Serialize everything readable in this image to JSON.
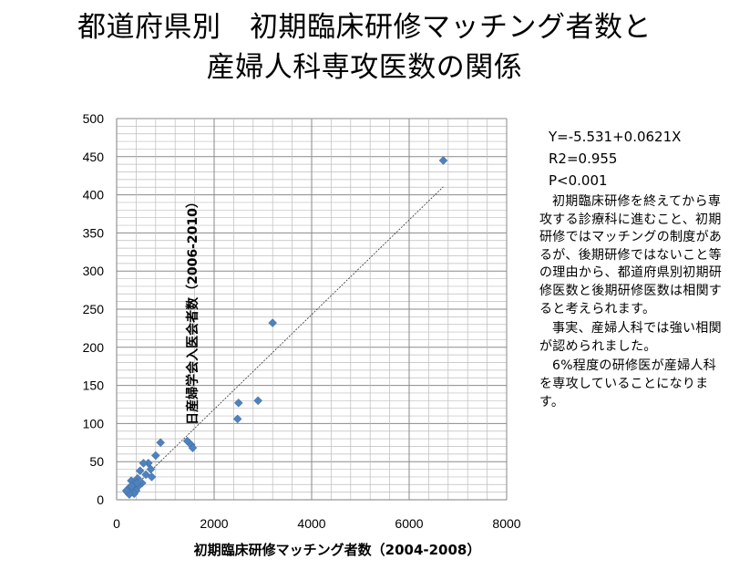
{
  "title": {
    "line1": "都道府県別　初期臨床研修マッチング者数と",
    "line2": "産婦人科専攻医数の関係"
  },
  "chart_data": {
    "type": "scatter",
    "xlabel": "初期臨床研修マッチング者数（2004-2008）",
    "ylabel": "日産婦学会入医会者数（2006-2010）",
    "xlim": [
      0,
      8000
    ],
    "ylim": [
      0,
      500
    ],
    "xticks": [
      "0",
      "2000",
      "4000",
      "6000",
      "8000"
    ],
    "yticks": [
      "0",
      "50",
      "100",
      "150",
      "200",
      "250",
      "300",
      "350",
      "400",
      "450",
      "500"
    ],
    "grid": true,
    "marker_color": "#4f81bd",
    "trendline": {
      "intercept": -5.531,
      "slope": 0.0621,
      "x_range": [
        200,
        6700
      ]
    },
    "points": [
      {
        "x": 6700,
        "y": 445
      },
      {
        "x": 3200,
        "y": 232
      },
      {
        "x": 2900,
        "y": 130
      },
      {
        "x": 2500,
        "y": 127
      },
      {
        "x": 2480,
        "y": 106
      },
      {
        "x": 1450,
        "y": 77
      },
      {
        "x": 1530,
        "y": 72
      },
      {
        "x": 1560,
        "y": 68
      },
      {
        "x": 900,
        "y": 75
      },
      {
        "x": 800,
        "y": 58
      },
      {
        "x": 650,
        "y": 48
      },
      {
        "x": 550,
        "y": 48
      },
      {
        "x": 700,
        "y": 40
      },
      {
        "x": 480,
        "y": 38
      },
      {
        "x": 600,
        "y": 33
      },
      {
        "x": 720,
        "y": 30
      },
      {
        "x": 430,
        "y": 28
      },
      {
        "x": 380,
        "y": 25
      },
      {
        "x": 300,
        "y": 25
      },
      {
        "x": 520,
        "y": 22
      },
      {
        "x": 350,
        "y": 20
      },
      {
        "x": 450,
        "y": 18
      },
      {
        "x": 280,
        "y": 17
      },
      {
        "x": 250,
        "y": 15
      },
      {
        "x": 330,
        "y": 13
      },
      {
        "x": 400,
        "y": 12
      },
      {
        "x": 220,
        "y": 10
      },
      {
        "x": 290,
        "y": 9
      },
      {
        "x": 360,
        "y": 8
      },
      {
        "x": 260,
        "y": 7
      },
      {
        "x": 200,
        "y": 12
      },
      {
        "x": 310,
        "y": 18
      },
      {
        "x": 420,
        "y": 22
      }
    ]
  },
  "stats": {
    "equation": "Y=-5.531+0.0621X",
    "r2": "R2=0.955",
    "p": "P<0.001"
  },
  "description": {
    "p1": "初期臨床研修を終えてから専攻する診療科に進むこと、初期研修ではマッチングの制度があるが、後期研修ではないこと等の理由から、都道府県別初期研修医数と後期研修医数は相関すると考えられます。",
    "p2": "事実、産婦人科では強い相関が認められました。",
    "p3": "6%程度の研修医が産婦人科を専攻していることになります。"
  }
}
